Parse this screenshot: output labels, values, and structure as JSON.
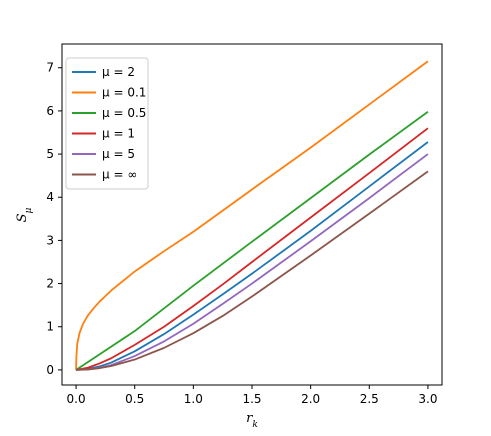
{
  "chart_data": {
    "type": "line",
    "xlabel": "r_k",
    "ylabel": "S_μ",
    "xlim": [
      -0.12,
      3.12
    ],
    "ylim": [
      -0.35,
      7.55
    ],
    "xticks": [
      0.0,
      0.5,
      1.0,
      1.5,
      2.0,
      2.5,
      3.0
    ],
    "xtick_labels": [
      "0.0",
      "0.5",
      "1.0",
      "1.5",
      "2.0",
      "2.5",
      "3.0"
    ],
    "yticks": [
      0,
      1,
      2,
      3,
      4,
      5,
      6,
      7
    ],
    "ytick_labels": [
      "0",
      "1",
      "2",
      "3",
      "4",
      "5",
      "6",
      "7"
    ],
    "grid": false,
    "legend_position": "top-left",
    "series": [
      {
        "name": "μ = 2",
        "color": "#1f77b4",
        "x": [
          0,
          0.1,
          0.2,
          0.3,
          0.5,
          0.75,
          1.0,
          1.25,
          1.5,
          2.0,
          2.5,
          3.0
        ],
        "y": [
          0,
          0.02,
          0.08,
          0.17,
          0.43,
          0.83,
          1.28,
          1.75,
          2.23,
          3.22,
          4.25,
          5.28
        ]
      },
      {
        "name": "μ = 0.1",
        "color": "#ff7f0e",
        "x": [
          0,
          0.003,
          0.01,
          0.03,
          0.06,
          0.1,
          0.15,
          0.2,
          0.3,
          0.5,
          0.75,
          1.0,
          1.5,
          2.0,
          2.5,
          3.0
        ],
        "y": [
          0,
          0.33,
          0.6,
          0.86,
          1.07,
          1.26,
          1.43,
          1.58,
          1.84,
          2.28,
          2.75,
          3.2,
          4.18,
          5.15,
          6.15,
          7.15
        ]
      },
      {
        "name": "μ = 0.5",
        "color": "#2ca02c",
        "x": [
          0,
          0.1,
          0.2,
          0.5,
          1.0,
          1.5,
          2.0,
          2.5,
          3.0
        ],
        "y": [
          0,
          0.18,
          0.36,
          0.9,
          1.95,
          2.97,
          3.98,
          4.99,
          5.98
        ]
      },
      {
        "name": "μ = 1",
        "color": "#d62728",
        "x": [
          0,
          0.1,
          0.2,
          0.3,
          0.5,
          0.75,
          1.0,
          1.25,
          1.5,
          2.0,
          2.5,
          3.0
        ],
        "y": [
          0,
          0.05,
          0.15,
          0.27,
          0.58,
          1.0,
          1.48,
          1.98,
          2.5,
          3.53,
          4.56,
          5.6
        ]
      },
      {
        "name": "μ = 5",
        "color": "#9467bd",
        "x": [
          0,
          0.1,
          0.2,
          0.3,
          0.5,
          0.75,
          1.0,
          1.25,
          1.5,
          2.0,
          2.5,
          3.0
        ],
        "y": [
          0,
          0.01,
          0.05,
          0.11,
          0.32,
          0.66,
          1.07,
          1.53,
          2.0,
          2.98,
          3.98,
          5.0
        ]
      },
      {
        "name": "μ = ∞",
        "color": "#8c564b",
        "x": [
          0,
          0.1,
          0.2,
          0.3,
          0.5,
          0.75,
          1.0,
          1.25,
          1.5,
          2.0,
          2.5,
          3.0
        ],
        "y": [
          0,
          0.01,
          0.04,
          0.09,
          0.24,
          0.51,
          0.85,
          1.25,
          1.7,
          2.65,
          3.62,
          4.6
        ]
      }
    ]
  }
}
